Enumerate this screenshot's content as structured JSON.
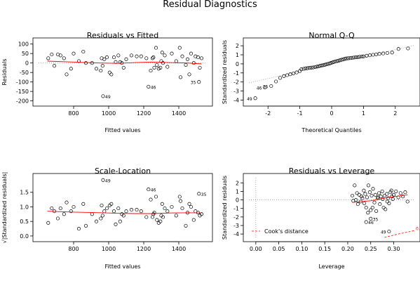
{
  "figure": {
    "title": "Residual Diagnostics"
  },
  "chart_data": [
    {
      "type": "scatter",
      "title": "Residuals vs Fitted",
      "xlabel": "Fitted values",
      "ylabel": "Residuals",
      "xlim": [
        600,
        1560
      ],
      "ylim": [
        -205,
        110
      ],
      "xticks": [
        800,
        1000,
        1200,
        1400
      ],
      "yticks": [
        -200,
        -150,
        -100,
        -50,
        0,
        50,
        100
      ],
      "hline": {
        "y": 0,
        "style": "dotted",
        "color": "#999999"
      },
      "smooth": {
        "color": "#ff0000",
        "x": [
          650,
          800,
          950,
          1050,
          1150,
          1250,
          1350,
          1450,
          1530
        ],
        "y": [
          10,
          5,
          0,
          -2,
          2,
          5,
          2,
          0,
          -5
        ]
      },
      "points": [
        [
          655,
          25
        ],
        [
          675,
          45
        ],
        [
          690,
          -15
        ],
        [
          710,
          45
        ],
        [
          725,
          40
        ],
        [
          745,
          25
        ],
        [
          760,
          -60
        ],
        [
          785,
          -30
        ],
        [
          800,
          50
        ],
        [
          830,
          10
        ],
        [
          855,
          60
        ],
        [
          870,
          0
        ],
        [
          905,
          0
        ],
        [
          930,
          -30
        ],
        [
          955,
          -40
        ],
        [
          960,
          25
        ],
        [
          965,
          -15
        ],
        [
          975,
          20
        ],
        [
          990,
          30
        ],
        [
          1005,
          -50
        ],
        [
          1015,
          -60
        ],
        [
          1030,
          30
        ],
        [
          1040,
          5
        ],
        [
          1055,
          40
        ],
        [
          1065,
          5
        ],
        [
          1075,
          0
        ],
        [
          1085,
          -25
        ],
        [
          1100,
          20
        ],
        [
          1130,
          40
        ],
        [
          1160,
          35
        ],
        [
          1185,
          35
        ],
        [
          1215,
          25
        ],
        [
          1240,
          -40
        ],
        [
          1250,
          25
        ],
        [
          1255,
          30
        ],
        [
          1260,
          -25
        ],
        [
          1270,
          80
        ],
        [
          1275,
          -10
        ],
        [
          1285,
          -30
        ],
        [
          1295,
          -25
        ],
        [
          1300,
          10
        ],
        [
          1305,
          55
        ],
        [
          1310,
          0
        ],
        [
          1320,
          40
        ],
        [
          1335,
          -20
        ],
        [
          1360,
          50
        ],
        [
          1385,
          10
        ],
        [
          1405,
          80
        ],
        [
          1410,
          -75
        ],
        [
          1420,
          35
        ],
        [
          1440,
          -10
        ],
        [
          1450,
          20
        ],
        [
          1460,
          -60
        ],
        [
          1470,
          50
        ],
        [
          1485,
          0
        ],
        [
          1495,
          35
        ],
        [
          1510,
          30
        ],
        [
          1520,
          -25
        ],
        [
          1530,
          25
        ],
        [
          968,
          -175
        ],
        [
          1227,
          -125
        ],
        [
          1515,
          -100
        ]
      ],
      "labels": [
        {
          "text": "49",
          "x": 968,
          "y": -175
        },
        {
          "text": "46",
          "x": 1227,
          "y": -125
        },
        {
          "text": "35",
          "x": 1515,
          "y": -100
        }
      ]
    },
    {
      "type": "scatter",
      "title": "Normal Q-Q",
      "xlabel": "Theoretical Quantiles",
      "ylabel": "Standardized residuals",
      "xlim": [
        -2.6,
        2.6
      ],
      "ylim": [
        -4.2,
        2.4
      ],
      "xticks": [
        -2,
        -1,
        0,
        1,
        2
      ],
      "yticks": [
        -4,
        -3,
        -2,
        -1,
        0,
        1,
        2
      ],
      "refline": {
        "x": [
          -2.6,
          2.6
        ],
        "y": [
          -2.1,
          2.05
        ],
        "style": "dotted",
        "color": "#999999"
      },
      "points": [
        [
          -2.4,
          -3.8
        ],
        [
          -2.1,
          -2.6
        ],
        [
          -1.9,
          -2.45
        ],
        [
          -1.75,
          -1.95
        ],
        [
          -1.62,
          -1.55
        ],
        [
          -1.5,
          -1.35
        ],
        [
          -1.4,
          -1.25
        ],
        [
          -1.3,
          -1.15
        ],
        [
          -1.2,
          -1.05
        ],
        [
          -1.1,
          -0.95
        ],
        [
          -1.0,
          -0.8
        ],
        [
          -0.95,
          -0.6
        ],
        [
          -0.88,
          -0.55
        ],
        [
          -0.82,
          -0.5
        ],
        [
          -0.76,
          -0.48
        ],
        [
          -0.7,
          -0.45
        ],
        [
          -0.64,
          -0.42
        ],
        [
          -0.58,
          -0.4
        ],
        [
          -0.52,
          -0.35
        ],
        [
          -0.46,
          -0.3
        ],
        [
          -0.41,
          -0.28
        ],
        [
          -0.36,
          -0.22
        ],
        [
          -0.31,
          -0.18
        ],
        [
          -0.26,
          -0.15
        ],
        [
          -0.21,
          -0.1
        ],
        [
          -0.16,
          -0.05
        ],
        [
          -0.11,
          0.0
        ],
        [
          -0.06,
          0.05
        ],
        [
          -0.02,
          0.1
        ],
        [
          0.02,
          0.15
        ],
        [
          0.06,
          0.2
        ],
        [
          0.11,
          0.25
        ],
        [
          0.16,
          0.3
        ],
        [
          0.21,
          0.35
        ],
        [
          0.26,
          0.4
        ],
        [
          0.31,
          0.45
        ],
        [
          0.36,
          0.5
        ],
        [
          0.41,
          0.55
        ],
        [
          0.46,
          0.6
        ],
        [
          0.52,
          0.62
        ],
        [
          0.58,
          0.65
        ],
        [
          0.64,
          0.67
        ],
        [
          0.7,
          0.7
        ],
        [
          0.76,
          0.72
        ],
        [
          0.82,
          0.75
        ],
        [
          0.88,
          0.78
        ],
        [
          0.95,
          0.8
        ],
        [
          1.0,
          0.82
        ],
        [
          1.1,
          0.9
        ],
        [
          1.2,
          0.95
        ],
        [
          1.3,
          1.0
        ],
        [
          1.4,
          1.05
        ],
        [
          1.5,
          1.1
        ],
        [
          1.62,
          1.15
        ],
        [
          1.75,
          1.2
        ],
        [
          1.9,
          1.25
        ],
        [
          2.1,
          1.65
        ],
        [
          2.4,
          1.7
        ]
      ],
      "labels": [
        {
          "text": "49",
          "x": -2.4,
          "y": -3.8
        },
        {
          "text": "46",
          "x": -2.1,
          "y": -2.6
        },
        {
          "text": "35",
          "x": -1.9,
          "y": -2.45
        }
      ]
    },
    {
      "type": "scatter",
      "title": "Scale-Location",
      "xlabel": "Fitted values",
      "ylabel": "√|Standardized residuals|",
      "xlim": [
        600,
        1560
      ],
      "ylim": [
        -0.05,
        2.0
      ],
      "xticks": [
        800,
        1000,
        1200,
        1400
      ],
      "yticks": [
        0.0,
        0.5,
        1.0,
        1.5
      ],
      "smooth": {
        "color": "#ff0000",
        "x": [
          650,
          800,
          950,
          1050,
          1150,
          1250,
          1350,
          1450,
          1530
        ],
        "y": [
          0.85,
          0.82,
          0.8,
          0.78,
          0.77,
          0.77,
          0.79,
          0.8,
          0.79
        ]
      },
      "points": [
        [
          655,
          0.45
        ],
        [
          675,
          0.95
        ],
        [
          690,
          0.85
        ],
        [
          710,
          0.6
        ],
        [
          725,
          0.95
        ],
        [
          745,
          0.75
        ],
        [
          760,
          1.15
        ],
        [
          785,
          0.85
        ],
        [
          800,
          1.0
        ],
        [
          830,
          0.25
        ],
        [
          855,
          1.1
        ],
        [
          870,
          0.35
        ],
        [
          905,
          0.75
        ],
        [
          930,
          0.5
        ],
        [
          955,
          0.6
        ],
        [
          960,
          1.05
        ],
        [
          965,
          0.7
        ],
        [
          975,
          0.85
        ],
        [
          990,
          0.95
        ],
        [
          1005,
          1.05
        ],
        [
          1015,
          1.1
        ],
        [
          1030,
          0.85
        ],
        [
          1040,
          0.4
        ],
        [
          1055,
          0.95
        ],
        [
          1065,
          0.5
        ],
        [
          1075,
          0.75
        ],
        [
          1085,
          0.7
        ],
        [
          1100,
          0.85
        ],
        [
          1130,
          0.9
        ],
        [
          1160,
          0.9
        ],
        [
          1185,
          0.85
        ],
        [
          1215,
          0.65
        ],
        [
          1240,
          1.25
        ],
        [
          1250,
          0.65
        ],
        [
          1255,
          0.75
        ],
        [
          1260,
          0.8
        ],
        [
          1270,
          1.35
        ],
        [
          1275,
          0.55
        ],
        [
          1285,
          0.45
        ],
        [
          1295,
          0.5
        ],
        [
          1300,
          0.7
        ],
        [
          1305,
          1.1
        ],
        [
          1310,
          0.65
        ],
        [
          1320,
          0.95
        ],
        [
          1335,
          0.85
        ],
        [
          1360,
          1.0
        ],
        [
          1385,
          0.7
        ],
        [
          1405,
          1.35
        ],
        [
          1410,
          1.2
        ],
        [
          1420,
          0.95
        ],
        [
          1440,
          0.35
        ],
        [
          1450,
          0.8
        ],
        [
          1460,
          1.1
        ],
        [
          1470,
          1.0
        ],
        [
          1485,
          0.55
        ],
        [
          1495,
          0.85
        ],
        [
          1510,
          0.8
        ],
        [
          1520,
          0.7
        ],
        [
          1530,
          0.75
        ],
        [
          968,
          1.92
        ],
        [
          1227,
          1.6
        ],
        [
          1515,
          1.45
        ]
      ],
      "labels": [
        {
          "text": "49",
          "x": 968,
          "y": 1.92
        },
        {
          "text": "46",
          "x": 1227,
          "y": 1.6
        },
        {
          "text": "35",
          "x": 1515,
          "y": 1.45
        }
      ]
    },
    {
      "type": "scatter",
      "title": "Residuals vs Leverage",
      "xlabel": "Leverage",
      "ylabel": "Standardized residuals",
      "xlim": [
        -0.015,
        0.345
      ],
      "ylim": [
        -4.4,
        2.6
      ],
      "xticks": [
        0.0,
        0.05,
        0.1,
        0.15,
        0.2,
        0.25,
        0.3
      ],
      "yticks": [
        -4,
        -3,
        -2,
        -1,
        0,
        1,
        2
      ],
      "smooth": {
        "color": "#ff0000",
        "x": [
          0.21,
          0.25,
          0.29,
          0.33
        ],
        "y": [
          -0.3,
          -0.1,
          0.3,
          0.6
        ]
      },
      "cooks": {
        "label": "Cook's distance",
        "contour": "0.5",
        "color": "#ff0000",
        "x": [
          0.28,
          0.31,
          0.345
        ],
        "y": [
          -4.4,
          -4.0,
          -3.6
        ]
      },
      "points": [
        [
          0.215,
          1.7
        ],
        [
          0.22,
          0.8
        ],
        [
          0.225,
          0.6
        ],
        [
          0.23,
          0.4
        ],
        [
          0.228,
          -0.2
        ],
        [
          0.232,
          0.2
        ],
        [
          0.235,
          1.1
        ],
        [
          0.238,
          0.7
        ],
        [
          0.24,
          -0.9
        ],
        [
          0.242,
          0.3
        ],
        [
          0.245,
          1.7
        ],
        [
          0.248,
          0.9
        ],
        [
          0.25,
          -1.2
        ],
        [
          0.252,
          0.5
        ],
        [
          0.255,
          1.3
        ],
        [
          0.258,
          -0.3
        ],
        [
          0.26,
          0.6
        ],
        [
          0.262,
          -1.3
        ],
        [
          0.265,
          0.2
        ],
        [
          0.268,
          0.8
        ],
        [
          0.27,
          -0.5
        ],
        [
          0.272,
          0.4
        ],
        [
          0.275,
          1.0
        ],
        [
          0.278,
          -0.9
        ],
        [
          0.28,
          0.5
        ],
        [
          0.282,
          -1.1
        ],
        [
          0.285,
          0.7
        ],
        [
          0.288,
          0.2
        ],
        [
          0.29,
          -0.4
        ],
        [
          0.293,
          0.9
        ],
        [
          0.295,
          1.1
        ],
        [
          0.298,
          0.1
        ],
        [
          0.3,
          0.6
        ],
        [
          0.305,
          1.0
        ],
        [
          0.31,
          0.3
        ],
        [
          0.315,
          0.8
        ],
        [
          0.32,
          0.4
        ],
        [
          0.325,
          0.9
        ],
        [
          0.33,
          -0.2
        ],
        [
          0.21,
          0.5
        ],
        [
          0.212,
          -0.1
        ],
        [
          0.218,
          0.0
        ],
        [
          0.222,
          -0.5
        ],
        [
          0.236,
          -0.4
        ],
        [
          0.244,
          -1.5
        ],
        [
          0.254,
          -0.9
        ],
        [
          0.266,
          0.3
        ],
        [
          0.276,
          0.1
        ],
        [
          0.286,
          -0.2
        ],
        [
          0.296,
          0.4
        ],
        [
          0.24,
          -2.6
        ],
        [
          0.25,
          -2.2
        ],
        [
          0.29,
          -3.7
        ]
      ],
      "labels": [
        {
          "text": "46",
          "x": 0.24,
          "y": -2.6
        },
        {
          "text": "35",
          "x": 0.25,
          "y": -2.2
        },
        {
          "text": "49",
          "x": 0.29,
          "y": -3.7
        }
      ]
    }
  ]
}
